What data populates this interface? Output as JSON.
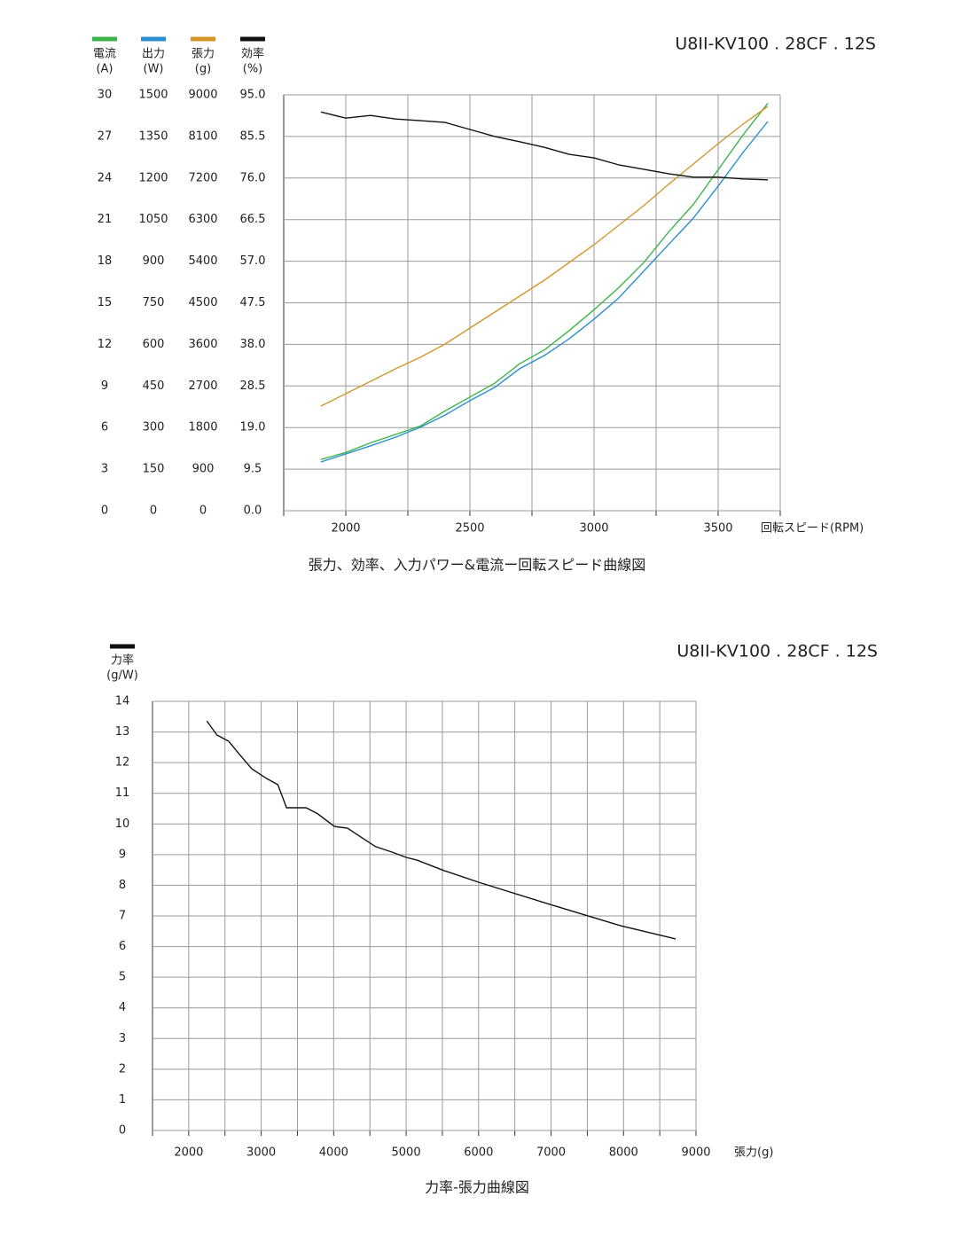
{
  "chart_data": [
    {
      "type": "line",
      "title": "U8II-KV100 . 28CF . 12S",
      "caption": "張力、効率、入力パワー&電流ー回転スピード曲線図",
      "xlabel": "回転スピード(RPM)",
      "xlim": [
        1750,
        3750
      ],
      "xticks": [
        2000,
        2500,
        3000,
        3500
      ],
      "xgrid": [
        1750,
        2000,
        2250,
        2500,
        2750,
        3000,
        3250,
        3500,
        3750
      ],
      "grid": true,
      "x": [
        1900,
        2000,
        2100,
        2200,
        2300,
        2400,
        2500,
        2600,
        2700,
        2800,
        2900,
        3000,
        3100,
        3200,
        3300,
        3400,
        3500,
        3600,
        3700
      ],
      "series": [
        {
          "name": "電流",
          "unit": "(A)",
          "color": "#3cb44a",
          "ylim": [
            0,
            30
          ],
          "yticks": [
            0,
            3,
            6,
            9,
            12,
            15,
            18,
            21,
            24,
            27,
            30
          ],
          "values": [
            3.7,
            4.2,
            4.9,
            5.5,
            6.1,
            7.2,
            8.2,
            9.2,
            10.6,
            11.6,
            13.0,
            14.5,
            16.1,
            17.9,
            20.1,
            22.1,
            24.6,
            27.1,
            29.4
          ]
        },
        {
          "name": "出力",
          "unit": "(W)",
          "color": "#2a8fd0",
          "ylim": [
            0,
            1500
          ],
          "yticks": [
            0,
            150,
            300,
            450,
            600,
            750,
            900,
            1050,
            1200,
            1350,
            1500
          ],
          "values": [
            176,
            205,
            234,
            265,
            301,
            345,
            397,
            445,
            512,
            560,
            620,
            691,
            768,
            864,
            960,
            1055,
            1171,
            1292,
            1404
          ]
        },
        {
          "name": "張力",
          "unit": "(g)",
          "color": "#d4962a",
          "ylim": [
            0,
            9000
          ],
          "yticks": [
            0,
            900,
            1800,
            2700,
            3600,
            4500,
            5400,
            6300,
            7200,
            8100,
            9000
          ],
          "values": [
            2265,
            2533,
            2802,
            3070,
            3320,
            3608,
            3953,
            4299,
            4644,
            4990,
            5373,
            5757,
            6180,
            6602,
            7063,
            7504,
            7945,
            8367,
            8750
          ]
        },
        {
          "name": "効率",
          "unit": "(%)",
          "color": "#111111",
          "ylim": [
            0,
            95
          ],
          "yticks": [
            {
              "value": 0,
              "label": "0.0"
            },
            {
              "value": 9.5,
              "label": "9.5"
            },
            {
              "value": 19,
              "label": "19.0"
            },
            {
              "value": 28.5,
              "label": "28.5"
            },
            {
              "value": 38,
              "label": "38.0"
            },
            {
              "value": 47.5,
              "label": "47.5"
            },
            {
              "value": 57,
              "label": "57.0"
            },
            {
              "value": 66.5,
              "label": "66.5"
            },
            {
              "value": 76,
              "label": "76.0"
            },
            {
              "value": 85.5,
              "label": "85.5"
            },
            {
              "value": 95,
              "label": "95.0"
            }
          ],
          "values": [
            91.1,
            89.7,
            90.3,
            89.5,
            89.1,
            88.7,
            87.1,
            85.5,
            84.3,
            83.0,
            81.4,
            80.6,
            79.0,
            78.0,
            77.0,
            76.2,
            76.2,
            75.8,
            75.6
          ]
        }
      ]
    },
    {
      "type": "line",
      "title": "U8II-KV100 . 28CF . 12S",
      "caption": "力率-張力曲線図",
      "xlabel": "張力(g)",
      "xlim": [
        1500,
        9000
      ],
      "xticks": [
        2000,
        3000,
        4000,
        5000,
        6000,
        7000,
        8000,
        9000
      ],
      "xgrid": [
        1500,
        2000,
        2500,
        3000,
        3500,
        4000,
        4500,
        5000,
        5500,
        6000,
        6500,
        7000,
        7500,
        8000,
        8500,
        9000
      ],
      "ylim": [
        0,
        14
      ],
      "yticks": [
        0,
        1,
        2,
        3,
        4,
        5,
        6,
        7,
        8,
        9,
        10,
        11,
        12,
        13,
        14
      ],
      "grid": true,
      "x": [
        2250,
        2390,
        2550,
        2700,
        2870,
        3070,
        3230,
        3350,
        3620,
        3780,
        4010,
        4190,
        4390,
        4580,
        4810,
        5000,
        5150,
        5520,
        6000,
        6980,
        7960,
        8720
      ],
      "series": [
        {
          "name": "力率",
          "unit": "(g/W)",
          "color": "#111111",
          "values": [
            13.36,
            12.9,
            12.7,
            12.27,
            11.8,
            11.49,
            11.28,
            10.53,
            10.53,
            10.33,
            9.92,
            9.86,
            9.55,
            9.26,
            9.08,
            8.91,
            8.82,
            8.48,
            8.1,
            7.38,
            6.68,
            6.25
          ]
        }
      ]
    }
  ]
}
